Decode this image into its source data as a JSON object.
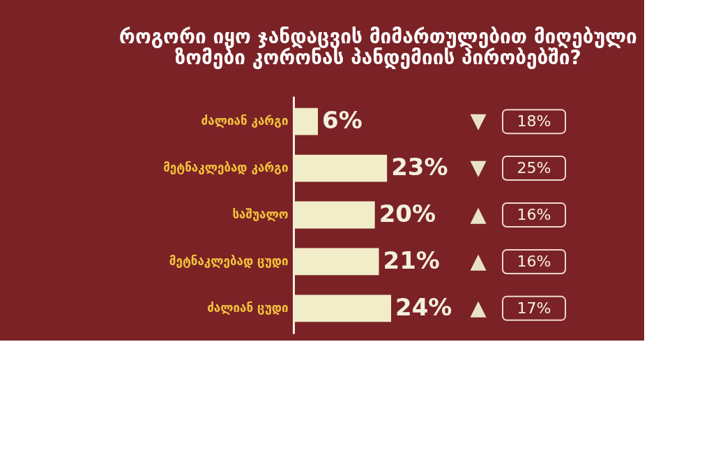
{
  "chart_data": {
    "type": "bar",
    "orientation": "horizontal",
    "title": [
      "როგორი იყო ჯანდაცვის მიმართულებით მიღებული",
      "ზომები კორონას პანდემიის პირობებში?"
    ],
    "categories": [
      "ძალიან კარგი",
      "მეტნაკლებად კარგი",
      "საშუალო",
      "მეტნაკლებად ცუდი",
      "ძალიან ცუდი"
    ],
    "values": [
      6,
      23,
      20,
      21,
      24
    ],
    "color": "#f1edc9",
    "value_labels": [
      "6%",
      "23%",
      "20%",
      "21%",
      "24%"
    ],
    "annotations": [
      "▼",
      "18%",
      "▼",
      "25%",
      "▲",
      "16%",
      "▲",
      "16%",
      "▲",
      "17%"
    ],
    "grid": false
  }
}
